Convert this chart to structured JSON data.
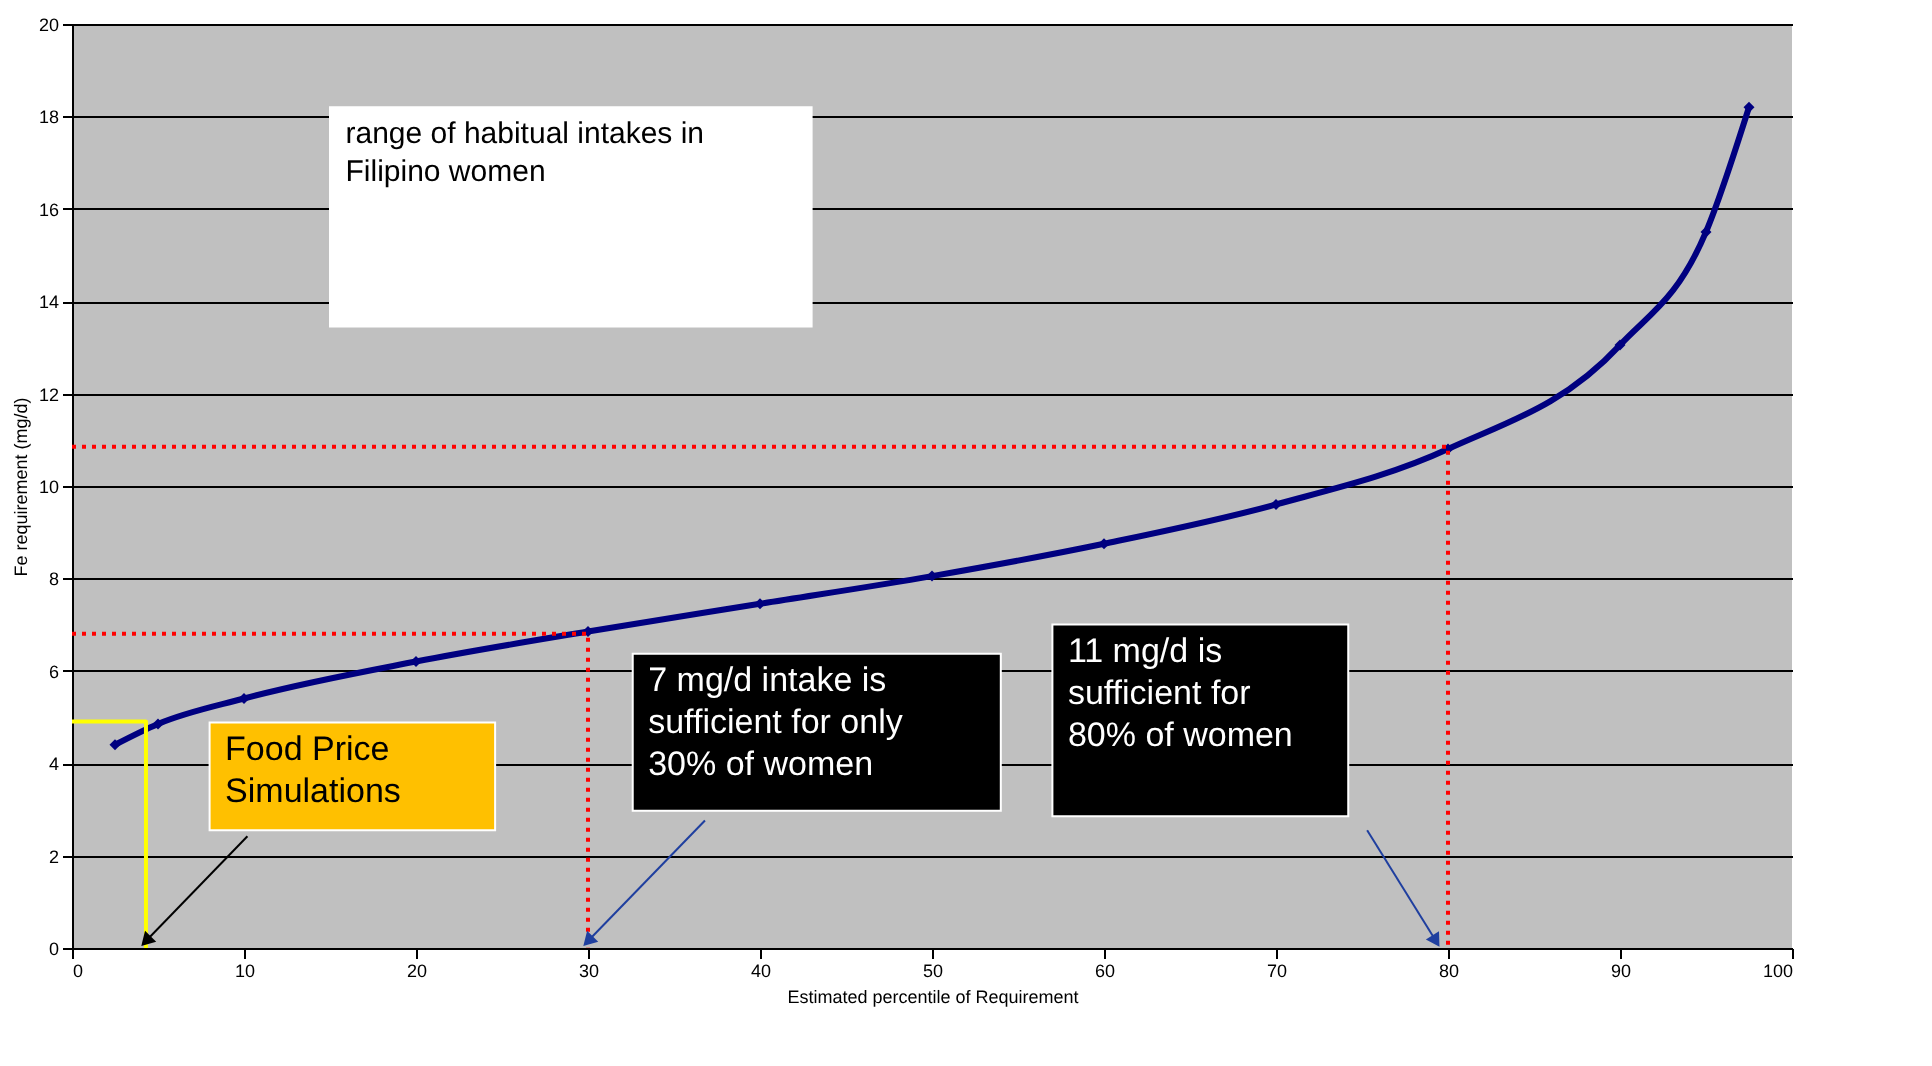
{
  "chart_data": {
    "type": "line",
    "xlabel": "Estimated percentile of Requirement",
    "ylabel": "Fe requirement (mg/d)",
    "xlim": [
      0,
      100
    ],
    "xticks": [
      0,
      10,
      20,
      30,
      40,
      50,
      60,
      70,
      80,
      90,
      100
    ],
    "ylim": [
      0,
      20
    ],
    "yticks": [
      0,
      2,
      4,
      6,
      8,
      10,
      12,
      14,
      16,
      18,
      20
    ],
    "grid": "y",
    "series": [
      {
        "color": "#000080",
        "marker": "diamond",
        "line_style": "solid",
        "x": [
          2.5,
          5,
          10,
          20,
          30,
          40,
          50,
          60,
          70,
          80,
          90,
          95,
          97.5
        ],
        "values": [
          4.4,
          4.85,
          5.4,
          6.2,
          6.85,
          7.45,
          8.05,
          8.75,
          9.6,
          10.8,
          13.05,
          15.5,
          18.2
        ]
      },
      {
        "color": "#ff0000",
        "marker": "none",
        "line_style": "dotted",
        "x": [
          0,
          30,
          30
        ],
        "values": [
          6.8,
          6.8,
          0
        ]
      },
      {
        "color": "#ff0000",
        "marker": "none",
        "line_style": "dotted",
        "x": [
          0,
          80,
          80
        ],
        "values": [
          10.85,
          10.85,
          0
        ]
      },
      {
        "color": "#ffff00",
        "marker": "none",
        "line_style": "solid",
        "x": [
          0,
          4.3,
          4.3
        ],
        "values": [
          4.9,
          4.9,
          0
        ]
      }
    ],
    "annotations": [
      "range of habitual intakes in Filipino women",
      {
        "text": "Food Price Simulations",
        "x": 4.3,
        "y": 0
      },
      {
        "text": "7 mg/d intake is sufficient for only 30% of women",
        "x": 30,
        "y": 0
      },
      "11 mg/d is sufficient for 80% of women"
    ]
  }
}
